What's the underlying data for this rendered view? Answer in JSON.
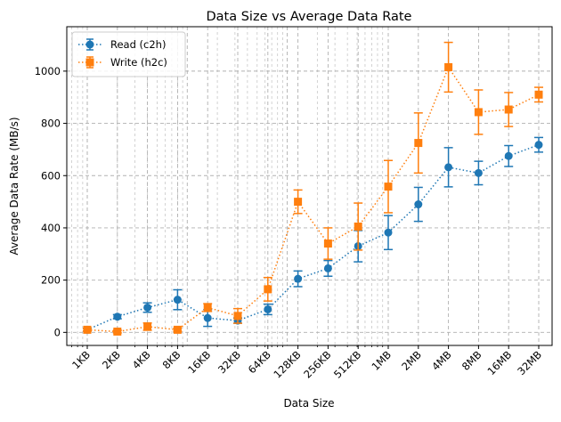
{
  "chart_data": {
    "type": "line",
    "title": "Data Size vs Average Data Rate",
    "xlabel": "Data Size",
    "ylabel": "Average Data Rate (MB/s)",
    "xscale": "log2",
    "ylim": [
      -50,
      1170
    ],
    "yticks": [
      0,
      200,
      400,
      600,
      800,
      1000
    ],
    "categories": [
      "1KB",
      "2KB",
      "4KB",
      "8KB",
      "16KB",
      "32KB",
      "64KB",
      "128KB",
      "256KB",
      "512KB",
      "1MB",
      "2MB",
      "4MB",
      "8MB",
      "16MB",
      "32MB"
    ],
    "grid": true,
    "legend_position": "top-left",
    "series": [
      {
        "name": "Read (c2h)",
        "color": "#1f77b4",
        "marker": "circle",
        "linestyle": "dotted",
        "values": [
          10,
          60,
          95,
          125,
          55,
          45,
          88,
          205,
          245,
          330,
          382,
          490,
          632,
          610,
          675,
          718
        ],
        "errors": [
          5,
          8,
          18,
          38,
          32,
          10,
          20,
          30,
          30,
          60,
          65,
          65,
          75,
          45,
          40,
          28
        ]
      },
      {
        "name": "Write (h2c)",
        "color": "#ff7f0e",
        "marker": "square",
        "linestyle": "dotted",
        "values": [
          10,
          3,
          22,
          10,
          95,
          63,
          165,
          500,
          340,
          405,
          558,
          725,
          1015,
          843,
          853,
          910
        ],
        "errors": [
          5,
          5,
          14,
          6,
          15,
          28,
          45,
          45,
          60,
          90,
          100,
          115,
          95,
          85,
          65,
          28
        ]
      }
    ]
  }
}
